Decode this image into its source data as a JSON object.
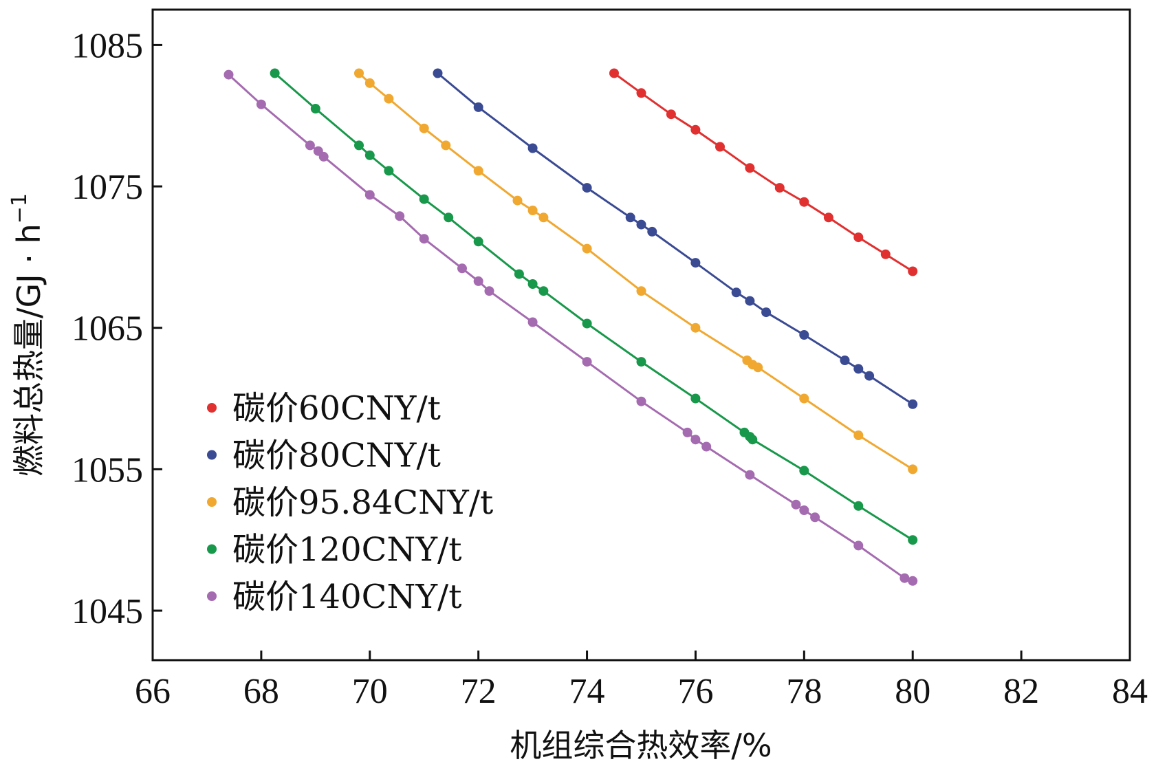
{
  "chart_data": {
    "type": "line",
    "title": "",
    "xlabel": "机组综合热效率/%",
    "ylabel": "燃料总热量/GJ · h",
    "ylabel_sup": "−1",
    "xlim": [
      66,
      84
    ],
    "ylim": [
      1041.5,
      1087.5
    ],
    "xticks": [
      66,
      68,
      70,
      72,
      74,
      76,
      78,
      80,
      82,
      84
    ],
    "yticks": [
      1045,
      1055,
      1065,
      1075,
      1085
    ],
    "legend_position": "lower-left",
    "series": [
      {
        "name": "碳价60CNY/t",
        "color": "#e03030",
        "x": [
          74.5,
          75.0,
          75.55,
          76.0,
          76.45,
          77.0,
          77.55,
          78.0,
          78.45,
          79.0,
          79.5,
          80.0
        ],
        "y": [
          1083.0,
          1081.6,
          1080.1,
          1079.0,
          1077.8,
          1076.3,
          1074.9,
          1073.9,
          1072.8,
          1071.4,
          1070.2,
          1069.0
        ]
      },
      {
        "name": "碳价80CNY/t",
        "color": "#3a4a93",
        "x": [
          71.25,
          72.0,
          73.0,
          74.0,
          74.8,
          75.0,
          75.2,
          76.0,
          76.75,
          77.0,
          77.3,
          78.0,
          78.75,
          79.0,
          79.2,
          80.0
        ],
        "y": [
          1083.0,
          1080.6,
          1077.7,
          1074.9,
          1072.8,
          1072.3,
          1071.8,
          1069.6,
          1067.5,
          1066.9,
          1066.1,
          1064.5,
          1062.7,
          1062.1,
          1061.6,
          1059.6
        ]
      },
      {
        "name": "碳价95.84CNY/t",
        "color": "#f0a830",
        "x": [
          69.8,
          70.0,
          70.35,
          71.0,
          71.4,
          72.0,
          72.72,
          73.0,
          73.2,
          74.0,
          75.0,
          76.0,
          76.95,
          77.05,
          77.15,
          78.0,
          79.0,
          80.0
        ],
        "y": [
          1083.0,
          1082.3,
          1081.2,
          1079.1,
          1077.9,
          1076.1,
          1074.0,
          1073.3,
          1072.8,
          1070.6,
          1067.6,
          1065.0,
          1062.7,
          1062.4,
          1062.2,
          1060.0,
          1057.4,
          1055.0
        ]
      },
      {
        "name": "碳价120CNY/t",
        "color": "#18984a",
        "x": [
          68.25,
          69.0,
          69.8,
          70.0,
          70.35,
          71.0,
          71.45,
          72.0,
          72.75,
          73.0,
          73.2,
          74.0,
          75.0,
          76.0,
          76.9,
          77.0,
          77.05,
          78.0,
          79.0,
          80.0
        ],
        "y": [
          1083.0,
          1080.5,
          1077.9,
          1077.2,
          1076.1,
          1074.1,
          1072.8,
          1071.1,
          1068.8,
          1068.1,
          1067.6,
          1065.3,
          1062.6,
          1060.0,
          1057.6,
          1057.3,
          1057.1,
          1054.9,
          1052.4,
          1050.0
        ]
      },
      {
        "name": "碳价140CNY/t",
        "color": "#a56bb0",
        "x": [
          67.4,
          68.0,
          68.9,
          69.05,
          69.15,
          70.0,
          70.55,
          71.0,
          71.7,
          72.0,
          72.2,
          73.0,
          74.0,
          75.0,
          75.85,
          76.0,
          76.2,
          77.0,
          77.85,
          78.0,
          78.2,
          79.0,
          79.85,
          80.0
        ],
        "y": [
          1082.9,
          1080.8,
          1077.9,
          1077.5,
          1077.1,
          1074.4,
          1072.9,
          1071.3,
          1069.2,
          1068.3,
          1067.6,
          1065.4,
          1062.6,
          1059.8,
          1057.6,
          1057.1,
          1056.6,
          1054.6,
          1052.5,
          1052.1,
          1051.6,
          1049.6,
          1047.3,
          1047.1
        ]
      }
    ]
  }
}
